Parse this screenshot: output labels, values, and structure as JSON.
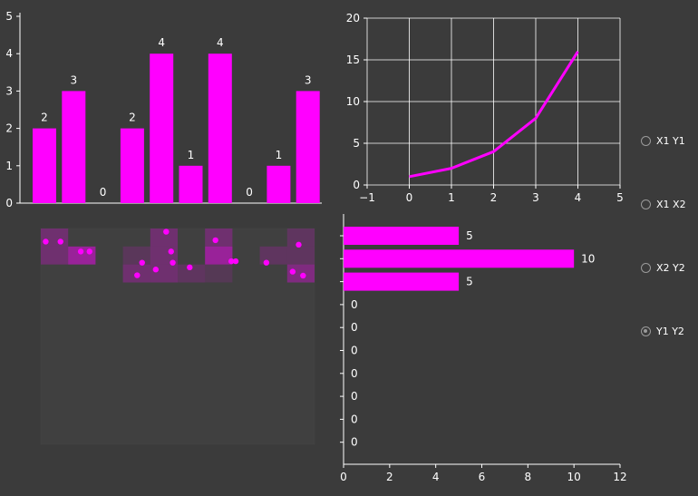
{
  "colors": {
    "background": "#3b3b3b",
    "accent": "#ff00ff",
    "text": "#ffffff",
    "grid": "#ffffff"
  },
  "chart_data": [
    {
      "type": "bar",
      "values": [
        2,
        3,
        0,
        2,
        4,
        1,
        4,
        0,
        1,
        3
      ],
      "ylim": [
        0,
        5
      ],
      "yticks": [
        "0",
        "1",
        "2",
        "3",
        "4",
        "5"
      ],
      "data_labels": [
        "2",
        "3",
        "0",
        "2",
        "4",
        "1",
        "4",
        "0",
        "1",
        "3"
      ]
    },
    {
      "type": "line",
      "x": [
        0,
        1,
        2,
        3,
        4
      ],
      "y": [
        1,
        2,
        4,
        8,
        16
      ],
      "xlim": [
        -1,
        5
      ],
      "ylim": [
        0,
        20
      ],
      "xticks": [
        "-1",
        "0",
        "1",
        "2",
        "3",
        "4",
        "5"
      ],
      "yticks": [
        "0",
        "5",
        "10",
        "15",
        "20"
      ],
      "grid": true
    },
    {
      "type": "heatmap",
      "rows": 12,
      "cols": 10,
      "cells": [
        {
          "r": 0,
          "c": 0,
          "v": 0.45
        },
        {
          "r": 0,
          "c": 4,
          "v": 0.45
        },
        {
          "r": 0,
          "c": 6,
          "v": 0.45
        },
        {
          "r": 0,
          "c": 9,
          "v": 0.3
        },
        {
          "r": 1,
          "c": 0,
          "v": 0.45
        },
        {
          "r": 1,
          "c": 1,
          "v": 0.85
        },
        {
          "r": 1,
          "c": 3,
          "v": 0.25
        },
        {
          "r": 1,
          "c": 4,
          "v": 0.45
        },
        {
          "r": 1,
          "c": 6,
          "v": 0.85
        },
        {
          "r": 1,
          "c": 8,
          "v": 0.3
        },
        {
          "r": 1,
          "c": 9,
          "v": 0.3
        },
        {
          "r": 2,
          "c": 3,
          "v": 0.45
        },
        {
          "r": 2,
          "c": 4,
          "v": 0.45
        },
        {
          "r": 2,
          "c": 5,
          "v": 0.3
        },
        {
          "r": 2,
          "c": 6,
          "v": 0.2
        },
        {
          "r": 2,
          "c": 9,
          "v": 0.6
        }
      ],
      "points": [
        {
          "x": 0.18,
          "y": 0.73
        },
        {
          "x": 0.72,
          "y": 0.73
        },
        {
          "x": 1.46,
          "y": 1.28
        },
        {
          "x": 1.78,
          "y": 1.28
        },
        {
          "x": 4.58,
          "y": 0.18
        },
        {
          "x": 6.38,
          "y": 0.65
        },
        {
          "x": 4.76,
          "y": 1.28
        },
        {
          "x": 9.42,
          "y": 0.9
        },
        {
          "x": 3.7,
          "y": 1.9
        },
        {
          "x": 4.82,
          "y": 1.9
        },
        {
          "x": 5.44,
          "y": 2.16
        },
        {
          "x": 4.2,
          "y": 2.28
        },
        {
          "x": 3.52,
          "y": 2.6
        },
        {
          "x": 6.96,
          "y": 1.82
        },
        {
          "x": 7.12,
          "y": 1.82
        },
        {
          "x": 8.24,
          "y": 1.9
        },
        {
          "x": 9.2,
          "y": 2.4
        },
        {
          "x": 9.58,
          "y": 2.62
        }
      ]
    },
    {
      "type": "bar",
      "orientation": "horizontal",
      "values": [
        5,
        10,
        5,
        0,
        0,
        0,
        0,
        0,
        0,
        0
      ],
      "data_labels": [
        "5",
        "10",
        "5",
        "0",
        "0",
        "0",
        "0",
        "0",
        "0",
        "0"
      ],
      "xlim": [
        0,
        12
      ],
      "xticks": [
        "0",
        "2",
        "4",
        "6",
        "8",
        "10",
        "12"
      ]
    }
  ],
  "radio_group": {
    "options": [
      {
        "label": "X1 Y1",
        "checked": false
      },
      {
        "label": "X1 X2",
        "checked": false
      },
      {
        "label": "X2 Y2",
        "checked": false
      },
      {
        "label": "Y1 Y2",
        "checked": true
      }
    ]
  }
}
